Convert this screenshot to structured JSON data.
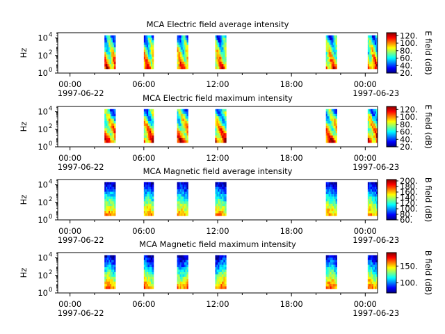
{
  "chart_data": [
    {
      "type": "heatmap",
      "title": "MCA  Electric field average intensity",
      "ylabel": "Hz",
      "colorbar_label": "E field (dB)",
      "colorbar_ticks": [
        "20.",
        "40.",
        "60.",
        "80.",
        "100.",
        "120."
      ],
      "colorbar_range": [
        20,
        128
      ],
      "yscale": "log",
      "ylim": [
        1,
        40000
      ],
      "y_tick_exponents": [
        "0",
        "2",
        "4"
      ],
      "x_ticks": [
        "00:00",
        "06:00",
        "12:00",
        "18:00",
        "00:00"
      ],
      "x_dates": [
        "1997-06-22",
        "1997-06-23"
      ],
      "xlim_hours": [
        -1,
        25
      ],
      "passes_hours": [
        [
          2.8,
          3.7
        ],
        [
          6.0,
          6.8
        ],
        [
          8.7,
          9.6
        ],
        [
          11.8,
          12.7
        ],
        [
          20.8,
          21.7
        ],
        [
          24.2,
          25.0
        ]
      ],
      "freq_range_hz": [
        3,
        20000
      ],
      "level_profile": "electric_avg"
    },
    {
      "type": "heatmap",
      "title": "MCA  Electric field maximum intensity",
      "ylabel": "Hz",
      "colorbar_label": "E field (dB)",
      "colorbar_ticks": [
        "20.",
        "40.",
        "60.",
        "80.",
        "100.",
        "120."
      ],
      "colorbar_range": [
        20,
        128
      ],
      "yscale": "log",
      "ylim": [
        1,
        40000
      ],
      "y_tick_exponents": [
        "0",
        "2",
        "4"
      ],
      "x_ticks": [
        "00:00",
        "06:00",
        "12:00",
        "18:00",
        "00:00"
      ],
      "x_dates": [
        "1997-06-22",
        "1997-06-23"
      ],
      "xlim_hours": [
        -1,
        25
      ],
      "passes_hours": [
        [
          2.8,
          3.7
        ],
        [
          6.0,
          6.8
        ],
        [
          8.7,
          9.6
        ],
        [
          11.8,
          12.7
        ],
        [
          20.8,
          21.7
        ],
        [
          24.2,
          25.0
        ]
      ],
      "freq_range_hz": [
        3,
        20000
      ],
      "level_profile": "electric_max"
    },
    {
      "type": "heatmap",
      "title": "MCA  Magnetic field average intensity",
      "ylabel": "Hz",
      "colorbar_label": "B field (dB)",
      "colorbar_ticks": [
        "60.",
        "80.",
        "100.",
        "120.",
        "140.",
        "160.",
        "180.",
        "200."
      ],
      "colorbar_range": [
        60,
        205
      ],
      "yscale": "log",
      "ylim": [
        1,
        40000
      ],
      "y_tick_exponents": [
        "0",
        "2",
        "4"
      ],
      "x_ticks": [
        "00:00",
        "06:00",
        "12:00",
        "18:00",
        "00:00"
      ],
      "x_dates": [
        "1997-06-22",
        "1997-06-23"
      ],
      "xlim_hours": [
        -1,
        25
      ],
      "passes_hours": [
        [
          2.8,
          3.7
        ],
        [
          6.0,
          6.8
        ],
        [
          8.7,
          9.6
        ],
        [
          11.8,
          12.7
        ],
        [
          20.8,
          21.7
        ],
        [
          24.2,
          25.0
        ]
      ],
      "freq_range_hz": [
        3,
        20000
      ],
      "level_profile": "magnetic_avg"
    },
    {
      "type": "heatmap",
      "title": "MCA  Magnetic field maximum intensity",
      "ylabel": "Hz",
      "colorbar_label": "B field (dB)",
      "colorbar_ticks": [
        "100.",
        "150."
      ],
      "colorbar_range": [
        70,
        190
      ],
      "yscale": "log",
      "ylim": [
        1,
        40000
      ],
      "y_tick_exponents": [
        "0",
        "2",
        "4"
      ],
      "x_ticks": [
        "00:00",
        "06:00",
        "12:00",
        "18:00",
        "00:00"
      ],
      "x_dates": [
        "1997-06-22",
        "1997-06-23"
      ],
      "xlim_hours": [
        -1,
        25
      ],
      "passes_hours": [
        [
          2.8,
          3.7
        ],
        [
          6.0,
          6.8
        ],
        [
          8.7,
          9.6
        ],
        [
          11.8,
          12.7
        ],
        [
          20.8,
          21.7
        ],
        [
          24.2,
          25.0
        ]
      ],
      "freq_range_hz": [
        3,
        20000
      ],
      "level_profile": "magnetic_max"
    }
  ]
}
